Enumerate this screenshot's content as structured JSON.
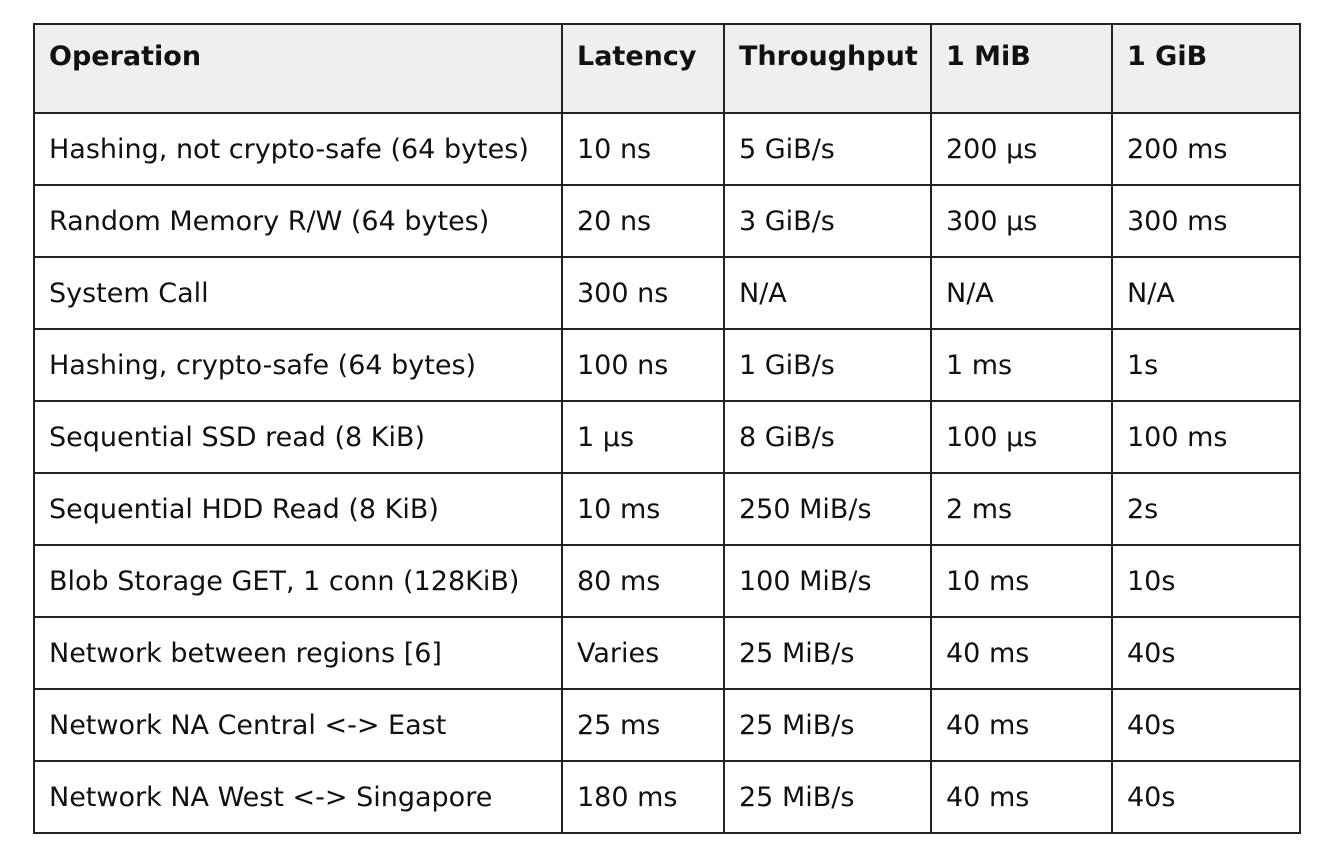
{
  "table": {
    "headers": [
      "Operation",
      "Latency",
      "Throughput",
      "1 MiB",
      "1 GiB"
    ],
    "rows": [
      [
        "Hashing, not crypto-safe (64 bytes)",
        "10 ns",
        "5 GiB/s",
        "200 µs",
        "200 ms"
      ],
      [
        "Random Memory R/W (64 bytes)",
        "20 ns",
        "3 GiB/s",
        "300 µs",
        "300 ms"
      ],
      [
        "System Call",
        "300 ns",
        "N/A",
        "N/A",
        "N/A"
      ],
      [
        "Hashing, crypto-safe (64 bytes)",
        "100 ns",
        "1 GiB/s",
        "1 ms",
        "1s"
      ],
      [
        "Sequential SSD read (8 KiB)",
        "1 µs",
        "8 GiB/s",
        "100 µs",
        "100 ms"
      ],
      [
        "Sequential HDD Read (8 KiB)",
        "10 ms",
        "250 MiB/s",
        "2 ms",
        "2s"
      ],
      [
        "Blob Storage GET, 1 conn (128KiB)",
        "80 ms",
        "100 MiB/s",
        "10 ms",
        "10s"
      ],
      [
        "Network between regions [6]",
        "Varies",
        "25 MiB/s",
        "40 ms",
        "40s"
      ],
      [
        "Network NA Central <-> East",
        "25 ms",
        "25 MiB/s",
        "40 ms",
        "40s"
      ],
      [
        "Network NA West <-> Singapore",
        "180 ms",
        "25 MiB/s",
        "40 ms",
        "40s"
      ]
    ]
  }
}
